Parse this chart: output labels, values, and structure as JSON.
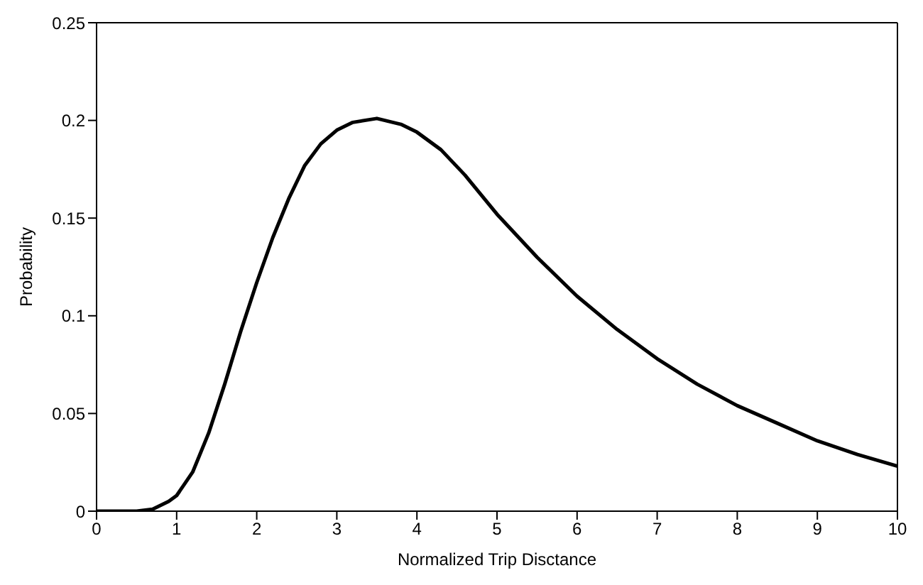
{
  "chart_data": {
    "type": "line",
    "xlabel": "Normalized Trip Disctance",
    "ylabel": "Probability",
    "x": [
      0,
      0.5,
      0.7,
      0.9,
      1.0,
      1.2,
      1.4,
      1.6,
      1.8,
      2.0,
      2.2,
      2.4,
      2.6,
      2.8,
      3.0,
      3.2,
      3.5,
      3.8,
      4.0,
      4.3,
      4.6,
      5.0,
      5.5,
      6.0,
      6.5,
      7.0,
      7.5,
      8.0,
      8.5,
      9.0,
      9.5,
      10
    ],
    "series": [
      {
        "color": "#000000",
        "values": [
          0,
          0,
          0.001,
          0.005,
          0.008,
          0.02,
          0.04,
          0.065,
          0.092,
          0.117,
          0.14,
          0.16,
          0.177,
          0.188,
          0.195,
          0.199,
          0.201,
          0.198,
          0.194,
          0.185,
          0.172,
          0.152,
          0.13,
          0.11,
          0.093,
          0.078,
          0.065,
          0.054,
          0.045,
          0.036,
          0.029,
          0.023
        ]
      }
    ],
    "xlim": [
      0,
      10
    ],
    "xticks": [
      0,
      1,
      2,
      3,
      4,
      5,
      6,
      7,
      8,
      9,
      10
    ],
    "ylim": [
      0,
      0.25
    ],
    "yticks": [
      0,
      0.05,
      0.1,
      0.15,
      0.2,
      0.25
    ],
    "grid": false,
    "legend": false,
    "marker": "none",
    "line_style": "solid"
  }
}
